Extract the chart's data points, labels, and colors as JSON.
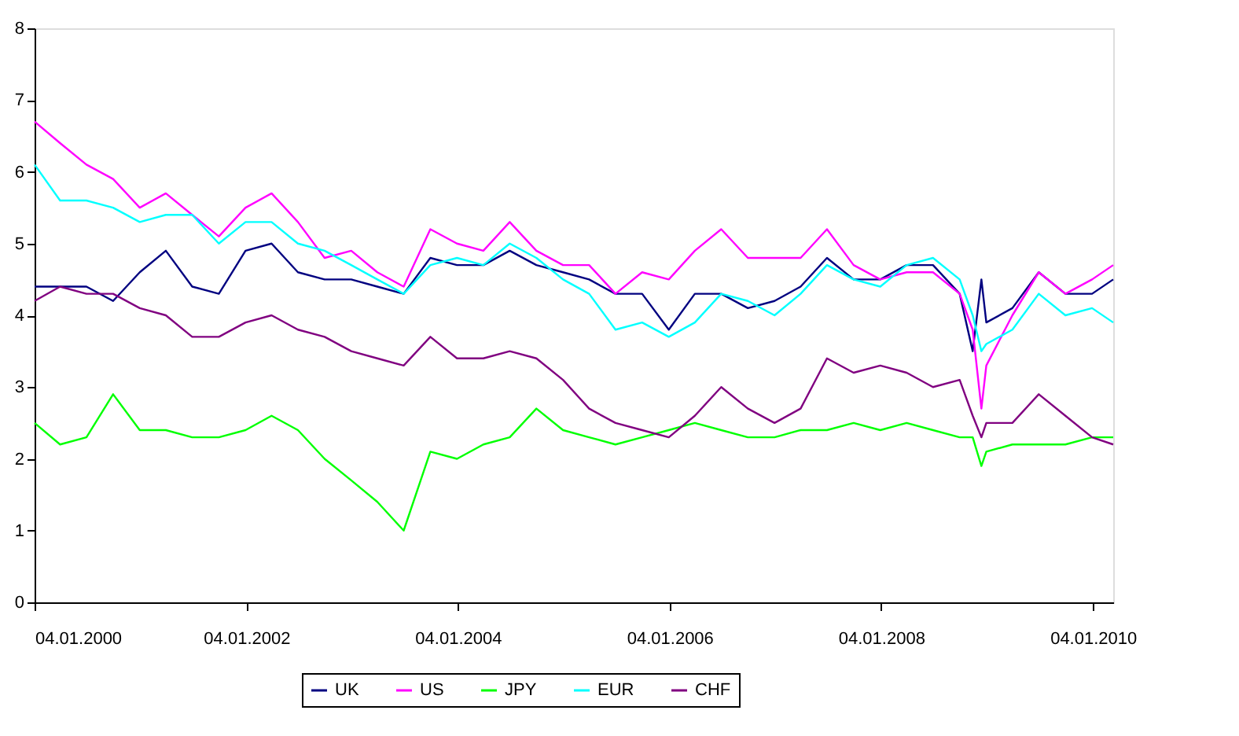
{
  "chart_data": {
    "type": "line",
    "x": [
      "2000-01-04",
      "2000-04-01",
      "2000-07-01",
      "2000-10-01",
      "2001-01-01",
      "2001-04-01",
      "2001-07-01",
      "2001-10-01",
      "2002-01-01",
      "2002-04-01",
      "2002-07-01",
      "2002-10-01",
      "2003-01-01",
      "2003-04-01",
      "2003-07-01",
      "2003-10-01",
      "2004-01-01",
      "2004-04-01",
      "2004-07-01",
      "2004-10-01",
      "2005-01-01",
      "2005-04-01",
      "2005-07-01",
      "2005-10-01",
      "2006-01-01",
      "2006-04-01",
      "2006-07-01",
      "2006-10-01",
      "2007-01-01",
      "2007-04-01",
      "2007-07-01",
      "2007-10-01",
      "2008-01-01",
      "2008-04-01",
      "2008-07-01",
      "2008-10-01",
      "2008-11-15",
      "2008-12-15",
      "2009-01-01",
      "2009-04-01",
      "2009-07-01",
      "2009-10-01",
      "2010-01-01",
      "2010-03-15"
    ],
    "series": [
      {
        "name": "UK",
        "color": "#000080",
        "values": [
          4.4,
          4.4,
          4.4,
          4.2,
          4.6,
          4.9,
          4.4,
          4.3,
          4.9,
          5.0,
          4.6,
          4.5,
          4.5,
          4.4,
          4.3,
          4.8,
          4.7,
          4.7,
          4.9,
          4.7,
          4.6,
          4.5,
          4.3,
          4.3,
          3.8,
          4.3,
          4.3,
          4.1,
          4.2,
          4.4,
          4.8,
          4.5,
          4.5,
          4.7,
          4.7,
          4.3,
          3.5,
          4.5,
          3.9,
          4.1,
          4.6,
          4.3,
          4.3,
          4.5
        ]
      },
      {
        "name": "US",
        "color": "#ff00ff",
        "values": [
          6.7,
          6.4,
          6.1,
          5.9,
          5.5,
          5.7,
          5.4,
          5.1,
          5.5,
          5.7,
          5.3,
          4.8,
          4.9,
          4.6,
          4.4,
          5.2,
          5.0,
          4.9,
          5.3,
          4.9,
          4.7,
          4.7,
          4.3,
          4.6,
          4.5,
          4.9,
          5.2,
          4.8,
          4.8,
          4.8,
          5.2,
          4.7,
          4.5,
          4.6,
          4.6,
          4.3,
          3.8,
          2.7,
          3.3,
          4.0,
          4.6,
          4.3,
          4.5,
          4.7
        ]
      },
      {
        "name": "JPY",
        "color": "#00ff00",
        "values": [
          2.5,
          2.2,
          2.3,
          2.9,
          2.4,
          2.4,
          2.3,
          2.3,
          2.4,
          2.6,
          2.4,
          2.0,
          1.7,
          1.4,
          1.0,
          2.1,
          2.0,
          2.2,
          2.3,
          2.7,
          2.4,
          2.3,
          2.2,
          2.3,
          2.4,
          2.5,
          2.4,
          2.3,
          2.3,
          2.4,
          2.4,
          2.5,
          2.4,
          2.5,
          2.4,
          2.3,
          2.3,
          1.9,
          2.1,
          2.2,
          2.2,
          2.2,
          2.3,
          2.3
        ]
      },
      {
        "name": "EUR",
        "color": "#00ffff",
        "values": [
          6.1,
          5.6,
          5.6,
          5.5,
          5.3,
          5.4,
          5.4,
          5.0,
          5.3,
          5.3,
          5.0,
          4.9,
          4.7,
          4.5,
          4.3,
          4.7,
          4.8,
          4.7,
          5.0,
          4.8,
          4.5,
          4.3,
          3.8,
          3.9,
          3.7,
          3.9,
          4.3,
          4.2,
          4.0,
          4.3,
          4.7,
          4.5,
          4.4,
          4.7,
          4.8,
          4.5,
          4.0,
          3.5,
          3.6,
          3.8,
          4.3,
          4.0,
          4.1,
          3.9
        ]
      },
      {
        "name": "CHF",
        "color": "#800080",
        "values": [
          4.2,
          4.4,
          4.3,
          4.3,
          4.1,
          4.0,
          3.7,
          3.7,
          3.9,
          4.0,
          3.8,
          3.7,
          3.5,
          3.4,
          3.3,
          3.7,
          3.4,
          3.4,
          3.5,
          3.4,
          3.1,
          2.7,
          2.5,
          2.4,
          2.3,
          2.6,
          3.0,
          2.7,
          2.5,
          2.7,
          3.4,
          3.2,
          3.3,
          3.2,
          3.0,
          3.1,
          2.6,
          2.3,
          2.5,
          2.5,
          2.9,
          2.6,
          2.3,
          2.2
        ]
      }
    ],
    "xlim": [
      "2000-01-04",
      "2010-03-15"
    ],
    "xticks": [
      {
        "value": "2000-01-04",
        "label": "04.01.2000"
      },
      {
        "value": "2002-01-04",
        "label": "04.01.2002"
      },
      {
        "value": "2004-01-04",
        "label": "04.01.2004"
      },
      {
        "value": "2006-01-04",
        "label": "04.01.2006"
      },
      {
        "value": "2008-01-04",
        "label": "04.01.2008"
      },
      {
        "value": "2010-01-04",
        "label": "04.01.2010"
      }
    ],
    "ylim": [
      0,
      8
    ],
    "yticks": [
      0,
      1,
      2,
      3,
      4,
      5,
      6,
      7,
      8
    ],
    "grid": false,
    "legend": "bottom",
    "marker": "none",
    "line_style": "solid"
  }
}
